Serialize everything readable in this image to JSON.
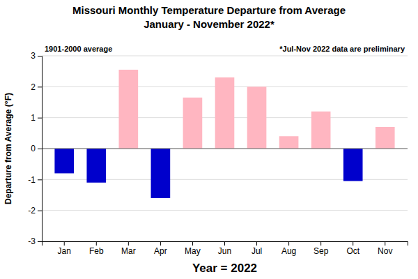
{
  "chart_data": {
    "type": "bar",
    "title": "Missouri Monthly Temperature Departure from Average",
    "subtitle": "January - November 2022*",
    "xlabel": "Year = 2022",
    "ylabel": "Departure from Average (°F)",
    "annotations": [
      "1901-2000 average",
      "*Jul-Nov 2022 data are preliminary"
    ],
    "categories": [
      "Jan",
      "Feb",
      "Mar",
      "Apr",
      "May",
      "Jun",
      "Jul",
      "Aug",
      "Sep",
      "Oct",
      "Nov"
    ],
    "values": [
      -0.8,
      -1.1,
      2.55,
      -1.6,
      1.65,
      2.3,
      2.0,
      0.4,
      1.2,
      -1.05,
      0.7
    ],
    "colors": [
      "#0000cc",
      "#0000cc",
      "#ffb6c1",
      "#0000cc",
      "#ffb6c1",
      "#ffb6c1",
      "#ffb6c1",
      "#ffb6c1",
      "#ffb6c1",
      "#0000cc",
      "#ffb6c1"
    ],
    "ylim": [
      -3,
      3
    ],
    "yticks": [
      -3,
      -2,
      -1,
      0,
      1,
      2,
      3
    ],
    "grid": true
  }
}
